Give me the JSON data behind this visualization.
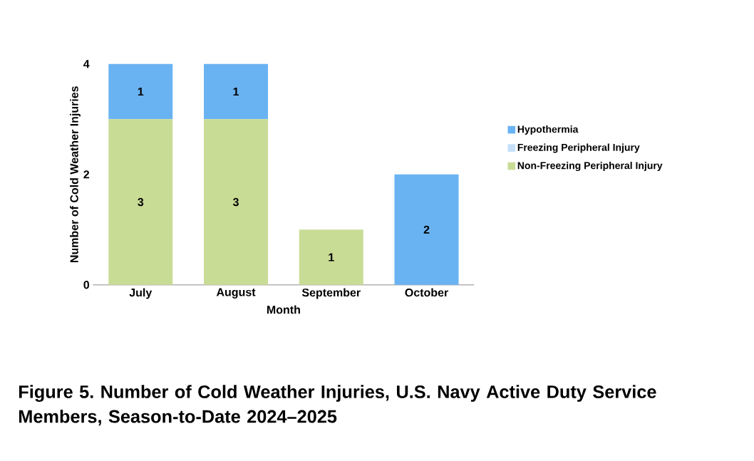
{
  "chart_data": {
    "type": "bar",
    "title": "Figure 5. Number of Cold Weather Injuries, U.S. Navy Active Duty Service Members, Season-to-Date 2024–2025",
    "xlabel": "Month",
    "ylabel": "Number of Cold Weather Injuries",
    "categories": [
      "July",
      "August",
      "September",
      "October"
    ],
    "stacked": true,
    "ylim": [
      0,
      4
    ],
    "yticks": [
      0,
      2,
      4
    ],
    "legend": "right",
    "series": [
      {
        "name": "Non-Freezing Peripheral Injury",
        "color": "#c9dc96",
        "values": [
          3,
          3,
          1,
          0
        ],
        "value_labels": [
          "3",
          "3",
          "1",
          null
        ]
      },
      {
        "name": "Freezing Peripheral Injury",
        "color": "#c5e0f8",
        "values": [
          0,
          0,
          0,
          0
        ],
        "value_labels": [
          null,
          null,
          null,
          null
        ]
      },
      {
        "name": "Hypothermia",
        "color": "#6ab3f2",
        "values": [
          1,
          1,
          0,
          2
        ],
        "value_labels": [
          "1",
          "1",
          null,
          "2"
        ]
      }
    ]
  }
}
